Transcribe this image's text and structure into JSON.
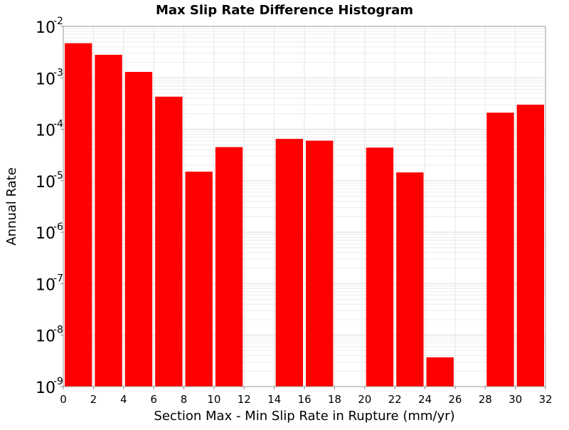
{
  "chart_data": {
    "type": "bar",
    "title": "Max Slip Rate Difference Histogram",
    "xlabel": "Section Max - Min Slip Rate in Rupture (mm/yr)",
    "ylabel": "Annual Rate",
    "xlim": [
      0,
      32
    ],
    "ylim": [
      1e-09,
      0.01
    ],
    "yscale": "log",
    "grid": true,
    "bar_color": "#ff0000",
    "bin_width": 2,
    "x_ticks": [
      "0",
      "2",
      "4",
      "6",
      "8",
      "10",
      "12",
      "14",
      "16",
      "18",
      "20",
      "22",
      "24",
      "26",
      "28",
      "30",
      "32"
    ],
    "y_ticks": [
      {
        "base": "10",
        "exp": "-2",
        "value": 0.01
      },
      {
        "base": "10",
        "exp": "-3",
        "value": 0.001
      },
      {
        "base": "10",
        "exp": "-4",
        "value": 0.0001
      },
      {
        "base": "10",
        "exp": "-5",
        "value": 1e-05
      },
      {
        "base": "10",
        "exp": "-6",
        "value": 1e-06
      },
      {
        "base": "10",
        "exp": "-7",
        "value": 1e-07
      },
      {
        "base": "10",
        "exp": "-8",
        "value": 1e-08
      },
      {
        "base": "10",
        "exp": "-9",
        "value": 1e-09
      }
    ],
    "bars": [
      {
        "x": 1,
        "value": 0.0047
      },
      {
        "x": 3,
        "value": 0.0028
      },
      {
        "x": 5,
        "value": 0.0013
      },
      {
        "x": 7,
        "value": 0.00043
      },
      {
        "x": 9,
        "value": 1.5e-05
      },
      {
        "x": 11,
        "value": 4.5e-05
      },
      {
        "x": 15,
        "value": 6.5e-05
      },
      {
        "x": 17,
        "value": 6e-05
      },
      {
        "x": 21,
        "value": 4.4e-05
      },
      {
        "x": 23,
        "value": 1.45e-05
      },
      {
        "x": 25,
        "value": 3.7e-09
      },
      {
        "x": 29,
        "value": 0.00021
      },
      {
        "x": 31,
        "value": 0.0003
      }
    ]
  }
}
